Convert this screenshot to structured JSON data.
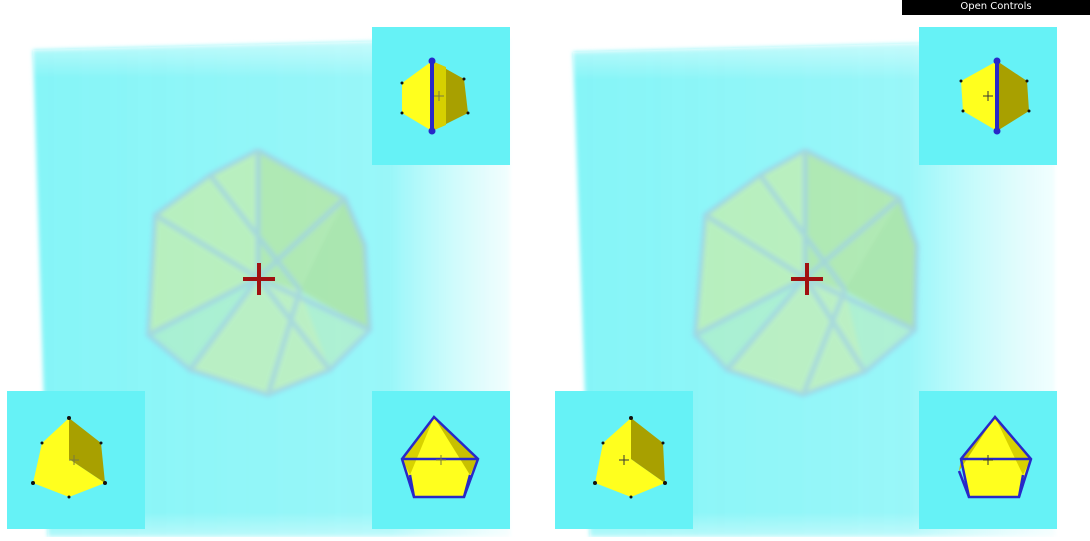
{
  "controls": {
    "label": "Open Controls"
  },
  "icons": {
    "center_cross": "crosshair-icon",
    "panel_cross": "small-crosshair-icon"
  },
  "colors": {
    "background_tint": "#66f2f6",
    "face_yellow": "#ffff1e",
    "face_olive": "#a8a000",
    "edge_blue": "#2828c8",
    "crosshair_red": "#a01010"
  },
  "views": [
    "left",
    "right"
  ]
}
